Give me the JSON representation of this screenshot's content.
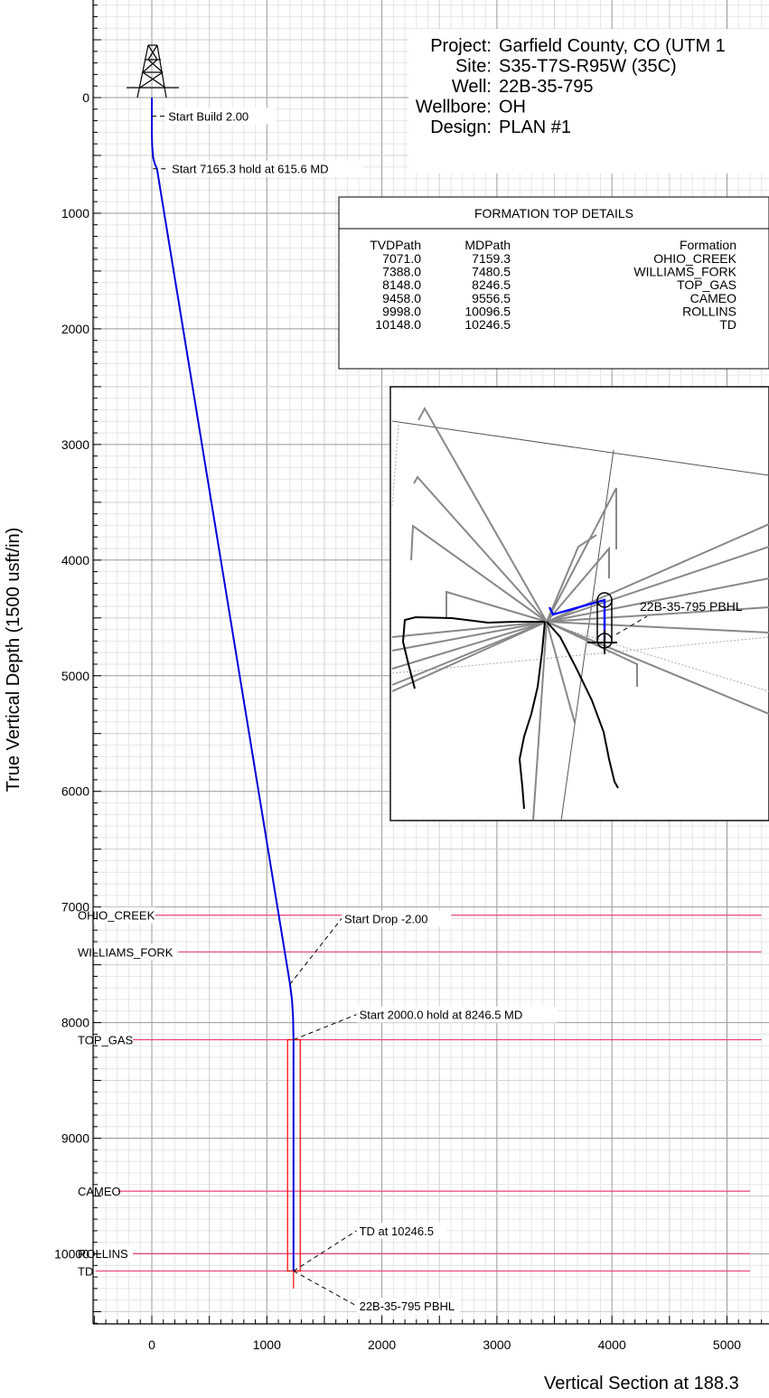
{
  "chart_data": {
    "type": "line",
    "xlabel": "Vertical Section at 188.3",
    "ylabel": "True Vertical Depth (1500 usft/in)",
    "xlim": [
      -500,
      5300
    ],
    "ylim": [
      10650,
      -850
    ],
    "xticks": [
      0,
      1000,
      2000,
      3000,
      4000,
      5000
    ],
    "yticks": [
      0,
      1000,
      2000,
      3000,
      4000,
      5000,
      6000,
      7000,
      8000,
      9000,
      10000
    ],
    "grid": true,
    "well_header": [
      {
        "label": "Project:",
        "value": "Garfield County, CO (UTM 1"
      },
      {
        "label": "Site:",
        "value": "S35-T7S-R95W (35C)"
      },
      {
        "label": "Well:",
        "value": "22B-35-795"
      },
      {
        "label": "Wellbore:",
        "value": "OH"
      },
      {
        "label": "Design:",
        "value": "PLAN #1"
      }
    ],
    "formation_table": {
      "title": "FORMATION TOP DETAILS",
      "columns": [
        "TVDPath",
        "MDPath",
        "Formation"
      ],
      "rows": [
        [
          "7071.0",
          "7159.3",
          "OHIO_CREEK"
        ],
        [
          "7388.0",
          "7480.5",
          "WILLIAMS_FORK"
        ],
        [
          "8148.0",
          "8246.5",
          "TOP_GAS"
        ],
        [
          "9458.0",
          "9556.5",
          "CAMEO"
        ],
        [
          "9998.0",
          "10096.5",
          "ROLLINS"
        ],
        [
          "10148.0",
          "10246.5",
          "TD"
        ]
      ]
    },
    "formations": [
      {
        "name": "OHIO_CREEK",
        "tvd": 7071,
        "x_end": 5300
      },
      {
        "name": "WILLIAMS_FORK",
        "tvd": 7388,
        "x_end": 5300
      },
      {
        "name": "TOP_GAS",
        "tvd": 8148,
        "x_end": 5300
      },
      {
        "name": "CAMEO",
        "tvd": 9458,
        "x_end": 5200
      },
      {
        "name": "ROLLINS",
        "tvd": 9998,
        "x_end": 5200
      },
      {
        "name": "TD",
        "tvd": 10148,
        "x_end": 5200
      }
    ],
    "series": [
      {
        "x": [
          0,
          0,
          3,
          12,
          28,
          45,
          1200,
          1218,
          1228,
          1232,
          1232
        ],
        "y": [
          0,
          300,
          420,
          520,
          580,
          615,
          7660,
          7800,
          7950,
          8148,
          10148
        ]
      }
    ],
    "target_box": {
      "x": [
        1180,
        1290
      ],
      "y": [
        8148,
        10148
      ]
    },
    "annotations": [
      {
        "text": "Start Build 2.00",
        "point": [
          0,
          160
        ],
        "label_at": [
          120,
          160
        ]
      },
      {
        "text": "Start 7165.3 hold at 615.6 MD",
        "point": [
          10,
          615
        ],
        "label_at": [
          150,
          615
        ]
      },
      {
        "text": "Start Drop -2.00",
        "point": [
          1200,
          7670
        ],
        "label_at": [
          1650,
          7100
        ]
      },
      {
        "text": "Start 2000.0 hold at 8246.5 MD",
        "point": [
          1232,
          8148
        ],
        "label_at": [
          1780,
          7930
        ]
      },
      {
        "text": "TD at 10246.5",
        "point": [
          1232,
          10148
        ],
        "label_at": [
          1780,
          9800
        ]
      },
      {
        "text": "22B-35-795 PBHL",
        "point": [
          1232,
          10148
        ],
        "label_at": [
          1780,
          10450
        ]
      }
    ],
    "inset_label": "22B-35-795 PBHL"
  }
}
